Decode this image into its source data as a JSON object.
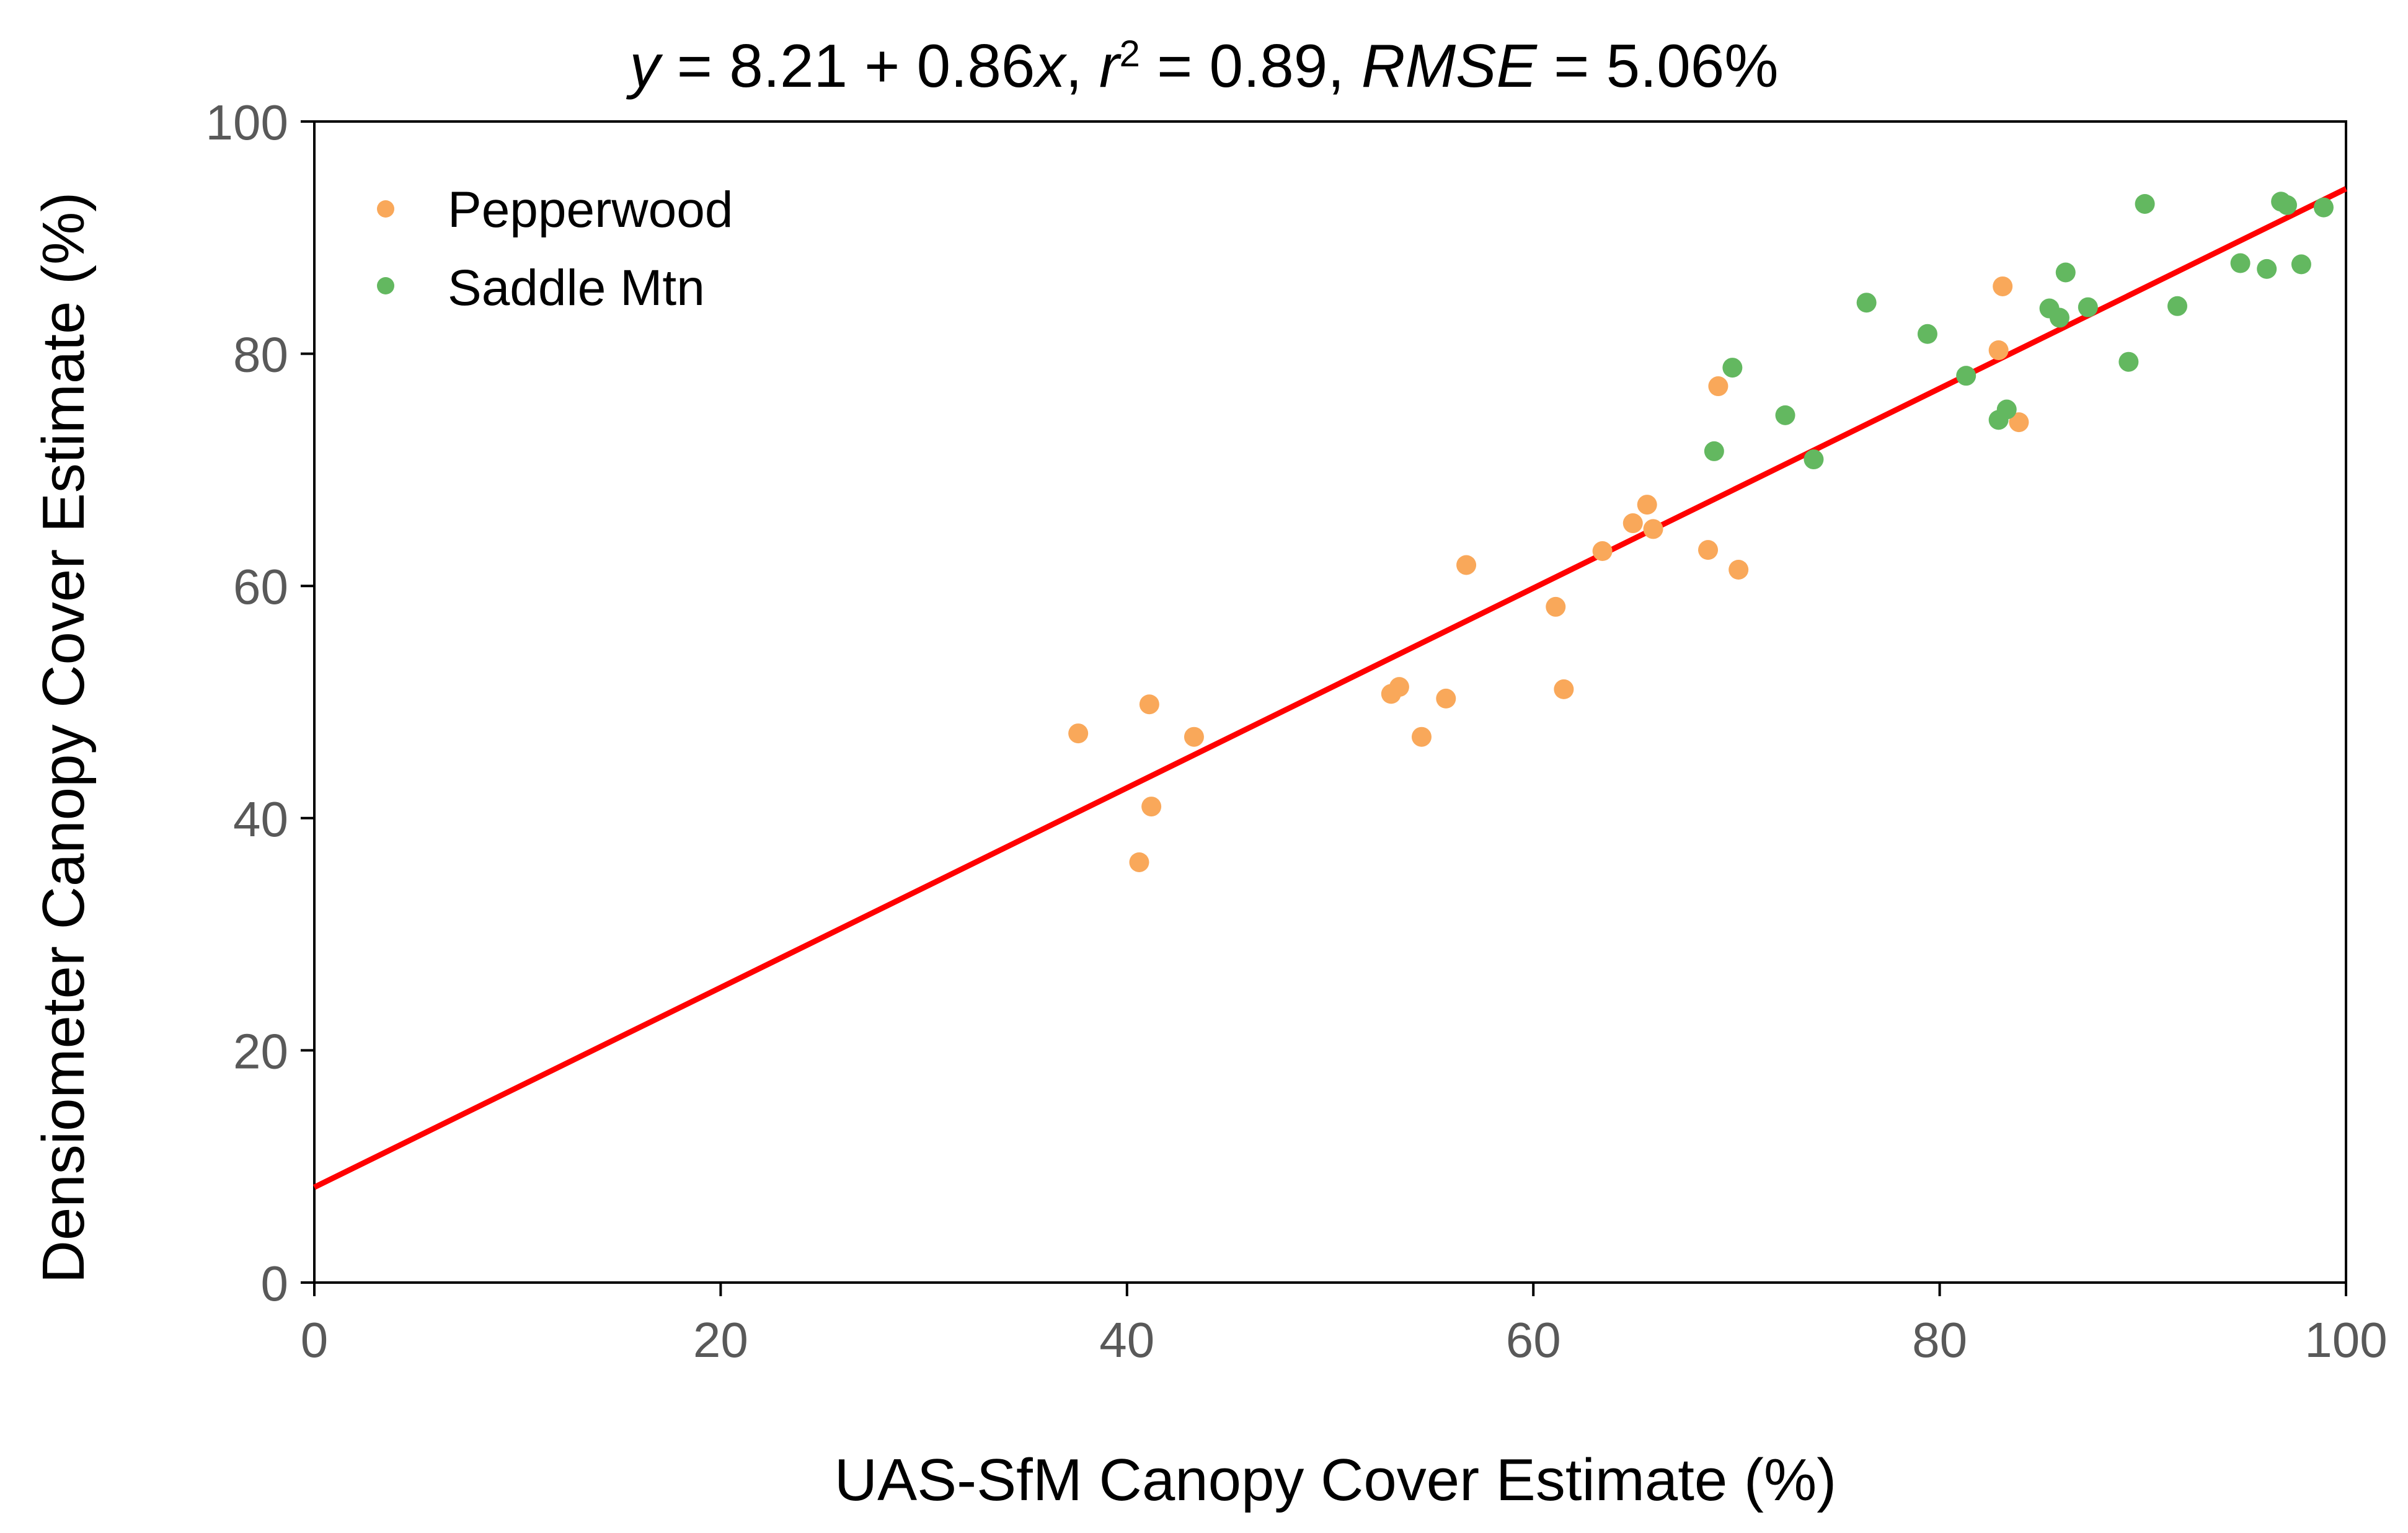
{
  "chart_data": {
    "type": "scatter",
    "title": {
      "eq_y": "y",
      "eq_rhs": " = 8.21 + 0.86",
      "eq_x": "x",
      "r_sep": ",  ",
      "r_var": "r",
      "r_exp": "2",
      "r_rhs": " = 0.89,  ",
      "rmse_var": "RMSE",
      "rmse_rhs": " = 5.06%"
    },
    "xlabel": "UAS-SfM Canopy Cover Estimate (%)",
    "ylabel": "Densiometer Canopy Cover Estimate (%)",
    "xlim": [
      0,
      100
    ],
    "ylim": [
      0,
      100
    ],
    "xticks": [
      "0",
      "20",
      "40",
      "60",
      "80",
      "100"
    ],
    "yticks": [
      "0",
      "20",
      "40",
      "60",
      "80",
      "100"
    ],
    "grid": false,
    "legend_position": "top-left",
    "regression": {
      "intercept": 8.21,
      "slope": 0.86,
      "color": "#ff0000"
    },
    "series": [
      {
        "name": "Pepperwood",
        "color": "#f9a85a",
        "points": [
          [
            37.6,
            47.3
          ],
          [
            41.1,
            49.8
          ],
          [
            43.3,
            47.0
          ],
          [
            41.2,
            41.0
          ],
          [
            40.6,
            36.2
          ],
          [
            53.0,
            50.7
          ],
          [
            53.4,
            51.3
          ],
          [
            55.7,
            50.3
          ],
          [
            54.5,
            47.0
          ],
          [
            56.7,
            61.8
          ],
          [
            61.1,
            58.2
          ],
          [
            61.5,
            51.1
          ],
          [
            63.4,
            63.0
          ],
          [
            64.9,
            65.4
          ],
          [
            65.6,
            67.0
          ],
          [
            65.9,
            64.9
          ],
          [
            68.6,
            63.1
          ],
          [
            70.1,
            61.4
          ],
          [
            69.1,
            77.2
          ],
          [
            82.9,
            80.3
          ],
          [
            83.1,
            85.8
          ],
          [
            83.9,
            74.1
          ]
        ]
      },
      {
        "name": "Saddle Mtn",
        "color": "#63b860",
        "points": [
          [
            68.9,
            71.6
          ],
          [
            69.8,
            78.8
          ],
          [
            72.4,
            74.7
          ],
          [
            73.8,
            70.9
          ],
          [
            76.4,
            84.4
          ],
          [
            79.4,
            81.7
          ],
          [
            81.3,
            78.1
          ],
          [
            82.9,
            74.3
          ],
          [
            83.3,
            75.2
          ],
          [
            85.4,
            83.9
          ],
          [
            85.9,
            83.1
          ],
          [
            86.2,
            87.0
          ],
          [
            87.3,
            84.0
          ],
          [
            89.3,
            79.3
          ],
          [
            90.1,
            92.9
          ],
          [
            91.7,
            84.1
          ],
          [
            94.8,
            87.8
          ],
          [
            96.1,
            87.3
          ],
          [
            96.8,
            93.1
          ],
          [
            97.1,
            92.8
          ],
          [
            97.8,
            87.7
          ],
          [
            98.9,
            92.6
          ]
        ]
      }
    ]
  }
}
